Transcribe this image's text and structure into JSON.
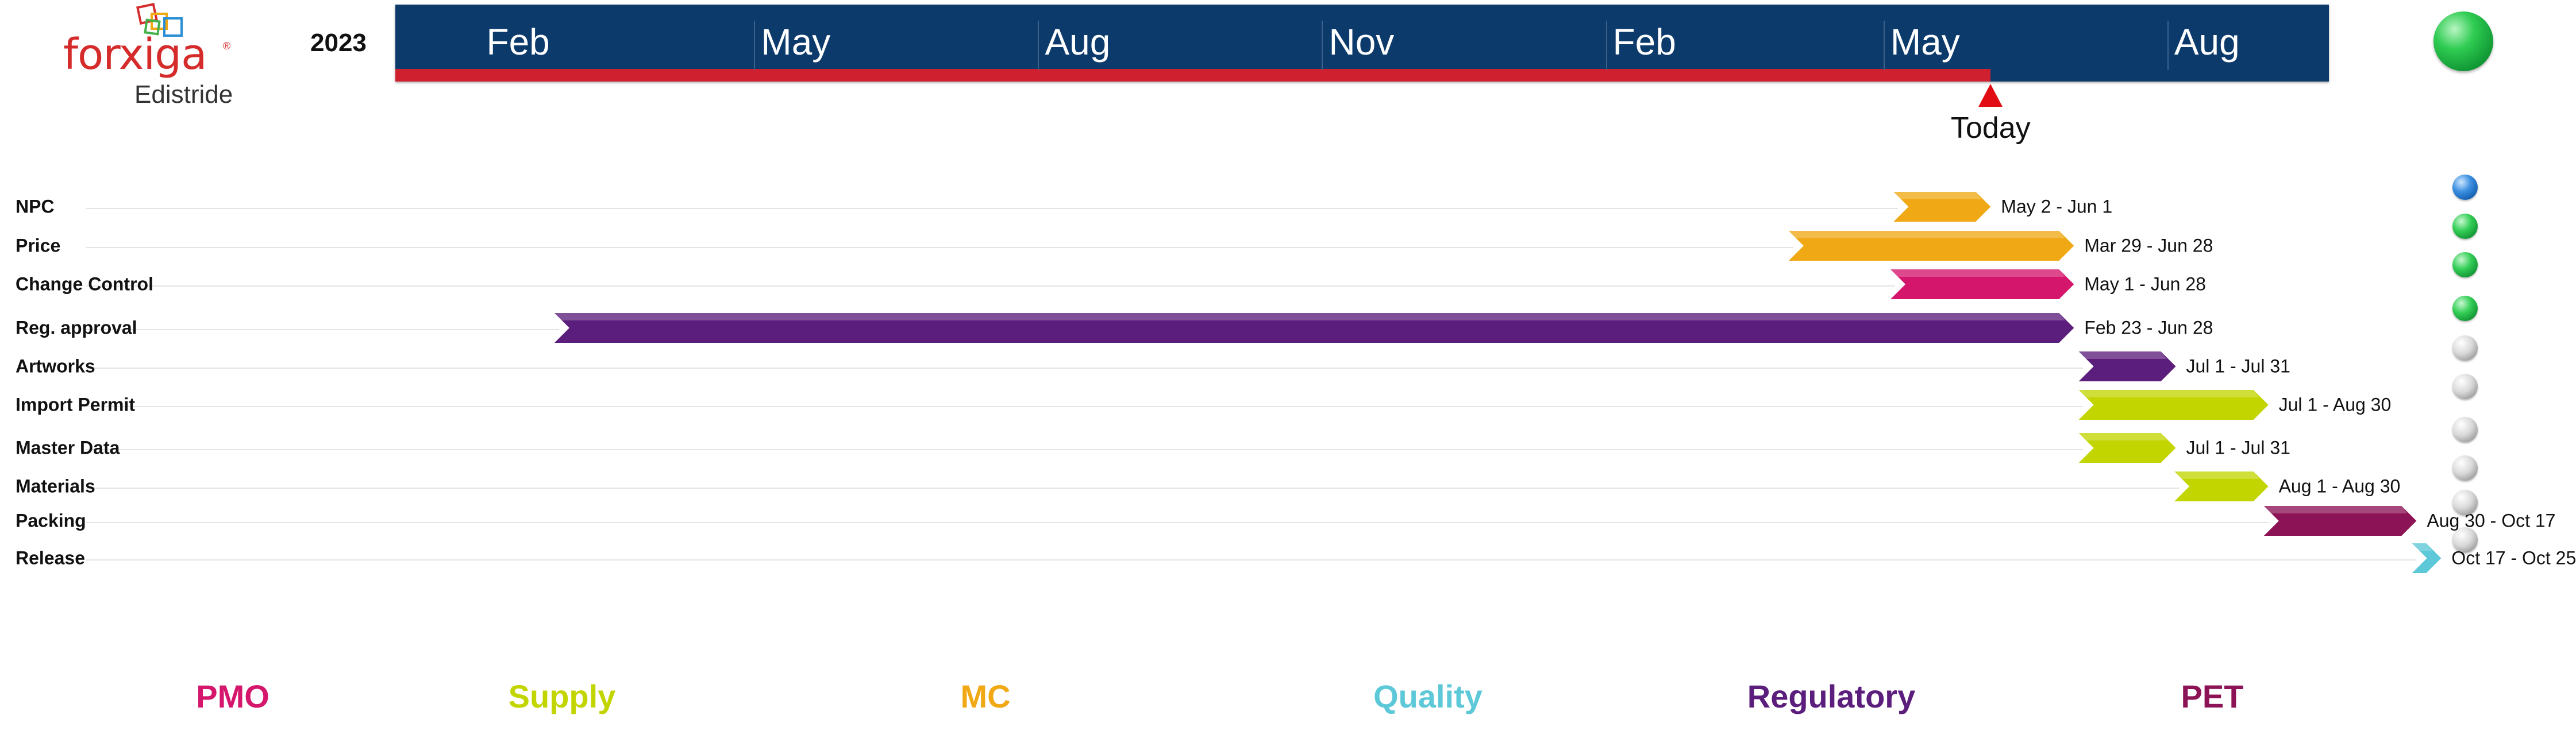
{
  "logo": {
    "brand": "forxiga",
    "product": "Edistride"
  },
  "header": {
    "year": "2023",
    "today_label": "Today"
  },
  "status": {
    "overall_color": "#27c04c"
  },
  "colors": {
    "PMO": "#d4166c",
    "Supply": "#c2d500",
    "MC": "#f0a814",
    "Quality": "#5cc8d8",
    "Regulatory": "#5b1e7c",
    "PET": "#8c1456"
  },
  "legend": [
    "PMO",
    "Supply",
    "MC",
    "Quality",
    "Regulatory",
    "PET"
  ],
  "chart_data": {
    "type": "gantt",
    "title": "",
    "timeline": {
      "start": "2023-01-01",
      "end": "2024-10-01",
      "today": "2024-06-01",
      "month_labels": [
        "Feb",
        "May",
        "Aug",
        "Nov",
        "Feb",
        "May",
        "Aug"
      ],
      "month_label_dates": [
        "2023-02-01",
        "2023-05-01",
        "2023-08-01",
        "2023-11-01",
        "2024-02-01",
        "2024-05-01",
        "2024-08-01"
      ]
    },
    "tasks": [
      {
        "name": "NPC",
        "start": "2024-05-02",
        "end": "2024-06-01",
        "label": "May 2 - Jun 1",
        "group": "MC",
        "status": "blue"
      },
      {
        "name": "Price",
        "start": "2024-03-29",
        "end": "2024-06-28",
        "label": "Mar 29 - Jun 28",
        "group": "MC",
        "status": "green"
      },
      {
        "name": "Change Control",
        "start": "2024-05-01",
        "end": "2024-06-28",
        "label": "May 1 - Jun 28",
        "group": "PMO",
        "status": "green"
      },
      {
        "name": "Reg. approval",
        "start": "2023-02-23",
        "end": "2024-06-28",
        "label": "Feb 23 - Jun 28",
        "group": "Regulatory",
        "status": "green"
      },
      {
        "name": "Artworks",
        "start": "2024-07-01",
        "end": "2024-07-31",
        "label": "Jul 1 - Jul 31",
        "group": "Regulatory",
        "status": "grey"
      },
      {
        "name": "Import Permit",
        "start": "2024-07-01",
        "end": "2024-08-30",
        "label": "Jul 1 - Aug 30",
        "group": "Supply",
        "status": "grey"
      },
      {
        "name": "Master Data",
        "start": "2024-07-01",
        "end": "2024-07-31",
        "label": "Jul 1 - Jul 31",
        "group": "Supply",
        "status": "grey"
      },
      {
        "name": "Materials",
        "start": "2024-08-01",
        "end": "2024-08-30",
        "label": "Aug 1 - Aug 30",
        "group": "Supply",
        "status": "grey"
      },
      {
        "name": "Packing",
        "start": "2024-08-30",
        "end": "2024-10-17",
        "label": "Aug 30 - Oct 17",
        "group": "PET",
        "status": "grey"
      },
      {
        "name": "Release",
        "start": "2024-10-17",
        "end": "2024-10-25",
        "label": "Oct 17 - Oct 25",
        "group": "Quality",
        "status": "grey"
      }
    ]
  }
}
